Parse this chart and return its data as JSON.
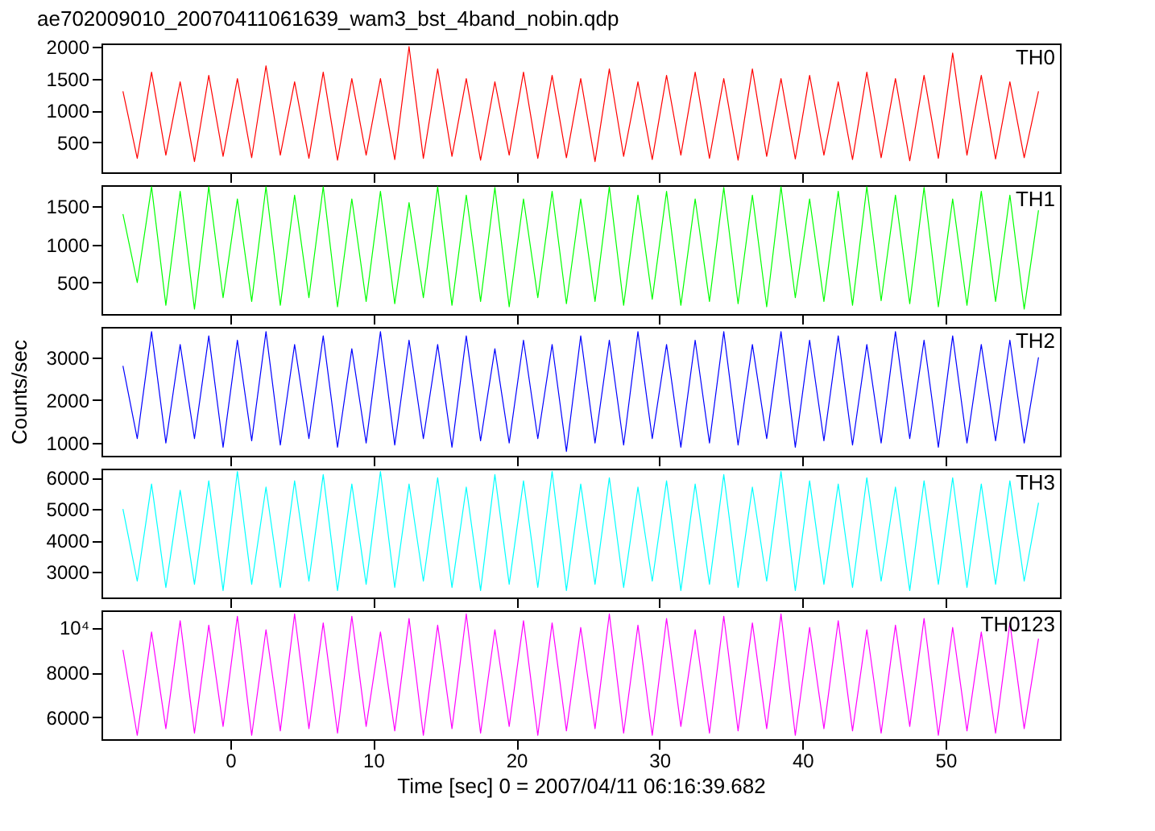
{
  "chart_data": [
    {
      "type": "line",
      "title": "ae702009010_20070411061639_wam3_bst_4band_nobin.qdp",
      "xlim": [
        -9,
        58
      ],
      "xticks": [
        0,
        10,
        20,
        30,
        40,
        50
      ],
      "ylim": [
        30,
        2050
      ],
      "yticks": [
        500,
        1000,
        1500,
        2000
      ],
      "tick_labels": "y",
      "x": [
        -7.5,
        -6.5,
        -5.5,
        -4.5,
        -3.5,
        -2.5,
        -1.5,
        -0.5,
        0.5,
        1.5,
        2.5,
        3.5,
        4.5,
        5.5,
        6.5,
        7.5,
        8.5,
        9.5,
        10.5,
        11.5,
        12.5,
        13.5,
        14.5,
        15.5,
        16.5,
        17.5,
        18.5,
        19.5,
        20.5,
        21.5,
        22.5,
        23.5,
        24.5,
        25.5,
        26.5,
        27.5,
        28.5,
        29.5,
        30.5,
        31.5,
        32.5,
        33.5,
        34.5,
        35.5,
        36.5,
        37.5,
        38.5,
        39.5,
        40.5,
        41.5,
        42.5,
        43.5,
        44.5,
        45.5,
        46.5,
        47.5,
        48.5,
        49.5,
        50.5,
        51.5,
        52.5,
        53.5,
        54.5,
        55.5,
        56.5
      ],
      "series": [
        {
          "name": "TH0",
          "color": "#ff0000",
          "values": [
            1300,
            250,
            1600,
            300,
            1450,
            200,
            1550,
            280,
            1500,
            260,
            1700,
            300,
            1450,
            250,
            1600,
            220,
            1500,
            300,
            1500,
            230,
            2000,
            250,
            1650,
            280,
            1500,
            220,
            1450,
            300,
            1600,
            250,
            1550,
            260,
            1500,
            200,
            1650,
            280,
            1450,
            230,
            1550,
            300,
            1600,
            250,
            1500,
            220,
            1650,
            280,
            1500,
            240,
            1550,
            300,
            1450,
            230,
            1600,
            260,
            1500,
            210,
            1550,
            250,
            1900,
            300,
            1550,
            240,
            1450,
            260,
            1300
          ]
        }
      ]
    },
    {
      "type": "line",
      "xlim": [
        -9,
        58
      ],
      "xticks": [
        0,
        10,
        20,
        30,
        40,
        50
      ],
      "ylim": [
        85,
        1780
      ],
      "yticks": [
        500,
        1000,
        1500
      ],
      "tick_labels": "y",
      "x": [
        -7.5,
        -6.5,
        -5.5,
        -4.5,
        -3.5,
        -2.5,
        -1.5,
        -0.5,
        0.5,
        1.5,
        2.5,
        3.5,
        4.5,
        5.5,
        6.5,
        7.5,
        8.5,
        9.5,
        10.5,
        11.5,
        12.5,
        13.5,
        14.5,
        15.5,
        16.5,
        17.5,
        18.5,
        19.5,
        20.5,
        21.5,
        22.5,
        23.5,
        24.5,
        25.5,
        26.5,
        27.5,
        28.5,
        29.5,
        30.5,
        31.5,
        32.5,
        33.5,
        34.5,
        35.5,
        36.5,
        37.5,
        38.5,
        39.5,
        40.5,
        41.5,
        42.5,
        43.5,
        44.5,
        45.5,
        46.5,
        47.5,
        48.5,
        49.5,
        50.5,
        51.5,
        52.5,
        53.5,
        54.5,
        55.5,
        56.5
      ],
      "series": [
        {
          "name": "TH1",
          "color": "#00ff00",
          "values": [
            1400,
            500,
            1760,
            200,
            1700,
            150,
            1760,
            300,
            1600,
            250,
            1760,
            200,
            1650,
            300,
            1760,
            180,
            1600,
            250,
            1700,
            220,
            1550,
            300,
            1760,
            200,
            1650,
            250,
            1750,
            180,
            1600,
            300,
            1700,
            220,
            1600,
            250,
            1760,
            200,
            1650,
            280,
            1700,
            200,
            1600,
            250,
            1750,
            220,
            1650,
            180,
            1760,
            300,
            1600,
            250,
            1700,
            200,
            1760,
            260,
            1650,
            220,
            1750,
            180,
            1600,
            200,
            1700,
            250,
            1650,
            150,
            1450
          ]
        }
      ]
    },
    {
      "type": "line",
      "ylabel": "Counts/sec",
      "xlim": [
        -9,
        58
      ],
      "xticks": [
        0,
        10,
        20,
        30,
        40,
        50
      ],
      "ylim": [
        700,
        3710
      ],
      "yticks": [
        1000,
        2000,
        3000
      ],
      "tick_labels": "y",
      "x": [
        -7.5,
        -6.5,
        -5.5,
        -4.5,
        -3.5,
        -2.5,
        -1.5,
        -0.5,
        0.5,
        1.5,
        2.5,
        3.5,
        4.5,
        5.5,
        6.5,
        7.5,
        8.5,
        9.5,
        10.5,
        11.5,
        12.5,
        13.5,
        14.5,
        15.5,
        16.5,
        17.5,
        18.5,
        19.5,
        20.5,
        21.5,
        22.5,
        23.5,
        24.5,
        25.5,
        26.5,
        27.5,
        28.5,
        29.5,
        30.5,
        31.5,
        32.5,
        33.5,
        34.5,
        35.5,
        36.5,
        37.5,
        38.5,
        39.5,
        40.5,
        41.5,
        42.5,
        43.5,
        44.5,
        45.5,
        46.5,
        47.5,
        48.5,
        49.5,
        50.5,
        51.5,
        52.5,
        53.5,
        54.5,
        55.5,
        56.5
      ],
      "series": [
        {
          "name": "TH2",
          "color": "#0000ff",
          "values": [
            2800,
            1100,
            3600,
            1000,
            3300,
            1100,
            3500,
            900,
            3400,
            1050,
            3600,
            950,
            3300,
            1100,
            3500,
            900,
            3200,
            1000,
            3600,
            950,
            3400,
            1100,
            3300,
            900,
            3500,
            1050,
            3200,
            1000,
            3400,
            1100,
            3300,
            800,
            3500,
            1000,
            3400,
            950,
            3600,
            1100,
            3300,
            900,
            3400,
            1000,
            3600,
            950,
            3300,
            1100,
            3600,
            900,
            3400,
            1050,
            3500,
            950,
            3300,
            1000,
            3600,
            1100,
            3400,
            900,
            3500,
            1000,
            3300,
            1050,
            3400,
            1000,
            3000
          ]
        }
      ]
    },
    {
      "type": "line",
      "xlim": [
        -9,
        58
      ],
      "xticks": [
        0,
        10,
        20,
        30,
        40,
        50
      ],
      "ylim": [
        2180,
        6290
      ],
      "yticks": [
        3000,
        4000,
        5000,
        6000
      ],
      "tick_labels": "y",
      "x": [
        -7.5,
        -6.5,
        -5.5,
        -4.5,
        -3.5,
        -2.5,
        -1.5,
        -0.5,
        0.5,
        1.5,
        2.5,
        3.5,
        4.5,
        5.5,
        6.5,
        7.5,
        8.5,
        9.5,
        10.5,
        11.5,
        12.5,
        13.5,
        14.5,
        15.5,
        16.5,
        17.5,
        18.5,
        19.5,
        20.5,
        21.5,
        22.5,
        23.5,
        24.5,
        25.5,
        26.5,
        27.5,
        28.5,
        29.5,
        30.5,
        31.5,
        32.5,
        33.5,
        34.5,
        35.5,
        36.5,
        37.5,
        38.5,
        39.5,
        40.5,
        41.5,
        42.5,
        43.5,
        44.5,
        45.5,
        46.5,
        47.5,
        48.5,
        49.5,
        50.5,
        51.5,
        52.5,
        53.5,
        54.5,
        55.5,
        56.5
      ],
      "series": [
        {
          "name": "TH3",
          "color": "#00ffff",
          "values": [
            5000,
            2700,
            5800,
            2500,
            5600,
            2600,
            5900,
            2400,
            6200,
            2600,
            5700,
            2500,
            5900,
            2700,
            6100,
            2400,
            5800,
            2600,
            6200,
            2500,
            5800,
            2700,
            6000,
            2500,
            5700,
            2400,
            6100,
            2600,
            5900,
            2500,
            6200,
            2400,
            5800,
            2600,
            6000,
            2500,
            5700,
            2700,
            5900,
            2400,
            5800,
            2600,
            6100,
            2500,
            5700,
            2700,
            6200,
            2400,
            5900,
            2600,
            5800,
            2500,
            6000,
            2700,
            5700,
            2400,
            5900,
            2600,
            6000,
            2500,
            5800,
            2600,
            5900,
            2700,
            5200
          ]
        }
      ]
    },
    {
      "type": "line",
      "xlabel": "Time [sec] 0 = 2007/04/11 06:16:39.682",
      "xlim": [
        -9,
        58
      ],
      "xticks": [
        0,
        10,
        20,
        30,
        40,
        50
      ],
      "ylim": [
        5030,
        10760
      ],
      "yticks": [
        6000,
        8000,
        {
          "value": 10000,
          "label": "10⁴"
        }
      ],
      "x": [
        -7.5,
        -6.5,
        -5.5,
        -4.5,
        -3.5,
        -2.5,
        -1.5,
        -0.5,
        0.5,
        1.5,
        2.5,
        3.5,
        4.5,
        5.5,
        6.5,
        7.5,
        8.5,
        9.5,
        10.5,
        11.5,
        12.5,
        13.5,
        14.5,
        15.5,
        16.5,
        17.5,
        18.5,
        19.5,
        20.5,
        21.5,
        22.5,
        23.5,
        24.5,
        25.5,
        26.5,
        27.5,
        28.5,
        29.5,
        30.5,
        31.5,
        32.5,
        33.5,
        34.5,
        35.5,
        36.5,
        37.5,
        38.5,
        39.5,
        40.5,
        41.5,
        42.5,
        43.5,
        44.5,
        45.5,
        46.5,
        47.5,
        48.5,
        49.5,
        50.5,
        51.5,
        52.5,
        53.5,
        54.5,
        55.5,
        56.5
      ],
      "series": [
        {
          "name": "TH0123",
          "color": "#ff00ff",
          "values": [
            9000,
            5200,
            9800,
            5500,
            10300,
            5300,
            10100,
            5600,
            10500,
            5200,
            9900,
            5400,
            10600,
            5500,
            10200,
            5300,
            10500,
            5600,
            9800,
            5400,
            10400,
            5200,
            10100,
            5500,
            10600,
            5300,
            9900,
            5600,
            10300,
            5200,
            10200,
            5400,
            10000,
            5500,
            10600,
            5300,
            10100,
            5200,
            10400,
            5600,
            9900,
            5300,
            10500,
            5400,
            10200,
            5500,
            10600,
            5200,
            10000,
            5500,
            10300,
            5400,
            9900,
            5300,
            10100,
            5600,
            10400,
            5200,
            10000,
            5400,
            9800,
            5300,
            10200,
            5500,
            9500
          ]
        }
      ]
    }
  ]
}
